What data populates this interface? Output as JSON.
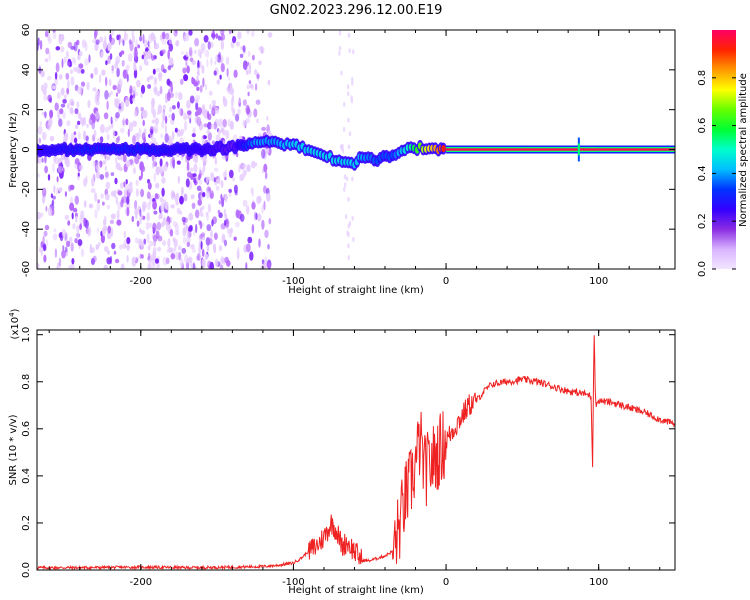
{
  "title": "GN02.2023.296.12.00.E19",
  "colorbar": {
    "label": "Normalized spectral amplitude",
    "ticks": [
      "0.0",
      "0.2",
      "0.4",
      "0.6",
      "0.8"
    ],
    "tick_values": [
      0.0,
      0.2,
      0.4,
      0.6,
      0.8
    ],
    "range": [
      0,
      1
    ],
    "colormap": [
      "#f2e6ff",
      "#d9b3ff",
      "#8a2be2",
      "#3300ff",
      "#0033ff",
      "#00bfff",
      "#00ffcc",
      "#00ff33",
      "#66ff00",
      "#ffff00",
      "#ff9900",
      "#ff2200",
      "#ff0066"
    ]
  },
  "chart_data": [
    {
      "type": "heatmap",
      "title": "GN02.2023.296.12.00.E19",
      "xlabel": "Height of straight line (km)",
      "ylabel": "Frequency (Hz)",
      "xlim": [
        -268,
        150
      ],
      "ylim": [
        -60,
        60
      ],
      "xticks": [
        -200,
        -100,
        0,
        100
      ],
      "yticks": [
        -60,
        -40,
        -20,
        0,
        20,
        40,
        60
      ],
      "xtick_labels": [
        "-200",
        "-100",
        "0",
        "100"
      ],
      "ytick_labels": [
        "-60",
        "-40",
        "-20",
        "0",
        "20",
        "40",
        "60"
      ],
      "signal_track": [
        {
          "x": -268,
          "freq": 0,
          "amp": 0.25
        },
        {
          "x": -240,
          "freq": 0,
          "amp": 0.3
        },
        {
          "x": -200,
          "freq": 0,
          "amp": 0.3
        },
        {
          "x": -160,
          "freq": 0,
          "amp": 0.25
        },
        {
          "x": -140,
          "freq": 1,
          "amp": 0.2
        },
        {
          "x": -125,
          "freq": 4,
          "amp": 0.4
        },
        {
          "x": -110,
          "freq": 3,
          "amp": 0.4
        },
        {
          "x": -100,
          "freq": 2,
          "amp": 0.45
        },
        {
          "x": -90,
          "freq": 0,
          "amp": 0.45
        },
        {
          "x": -80,
          "freq": -3,
          "amp": 0.45
        },
        {
          "x": -70,
          "freq": -6,
          "amp": 0.45
        },
        {
          "x": -60,
          "freq": -8,
          "amp": 0.45
        },
        {
          "x": -55,
          "freq": -3,
          "amp": 0.4
        },
        {
          "x": -45,
          "freq": -5,
          "amp": 0.35
        },
        {
          "x": -35,
          "freq": -3,
          "amp": 0.35
        },
        {
          "x": -25,
          "freq": 0,
          "amp": 0.5
        },
        {
          "x": -15,
          "freq": 1,
          "amp": 0.7
        },
        {
          "x": -5,
          "freq": 0,
          "amp": 0.85
        },
        {
          "x": 0,
          "freq": 0,
          "amp": 0.95
        },
        {
          "x": 50,
          "freq": 0,
          "amp": 1.0
        },
        {
          "x": 100,
          "freq": 0,
          "amp": 1.0
        },
        {
          "x": 150,
          "freq": 0,
          "amp": 1.0
        }
      ],
      "noise_extent_km": [
        -268,
        -115
      ],
      "spike_x": 87
    },
    {
      "type": "line",
      "xlabel": "Height of straight line (km)",
      "ylabel": "SNR (10 * v/v)",
      "y_multiplier": "(x10",
      "y_multiplier_exp": "4",
      "y_multiplier_close": ")",
      "xlim": [
        -268,
        150
      ],
      "ylim": [
        0,
        1.02
      ],
      "xticks": [
        -200,
        -100,
        0,
        100
      ],
      "yticks": [
        0.0,
        0.2,
        0.4,
        0.6,
        0.8,
        1.0
      ],
      "xtick_labels": [
        "-200",
        "-100",
        "0",
        "100"
      ],
      "ytick_labels": [
        "0.0",
        "0.2",
        "0.4",
        "0.6",
        "0.8",
        "1.0"
      ],
      "series": [
        {
          "color": "#ee2222",
          "x": [
            -268,
            -240,
            -200,
            -170,
            -140,
            -120,
            -110,
            -100,
            -95,
            -90,
            -85,
            -80,
            -75,
            -72,
            -68,
            -65,
            -60,
            -55,
            -50,
            -45,
            -40,
            -35,
            -30,
            -27,
            -24,
            -20,
            -17,
            -14,
            -10,
            -5,
            0,
            5,
            10,
            15,
            20,
            25,
            30,
            40,
            50,
            60,
            70,
            80,
            90,
            95,
            96,
            97,
            98,
            100,
            110,
            120,
            130,
            140,
            150
          ],
          "y": [
            0.01,
            0.01,
            0.012,
            0.01,
            0.012,
            0.015,
            0.02,
            0.03,
            0.05,
            0.08,
            0.1,
            0.14,
            0.2,
            0.17,
            0.1,
            0.12,
            0.08,
            0.04,
            0.04,
            0.05,
            0.06,
            0.08,
            0.2,
            0.3,
            0.35,
            0.45,
            0.55,
            0.42,
            0.45,
            0.5,
            0.55,
            0.6,
            0.65,
            0.7,
            0.72,
            0.76,
            0.79,
            0.8,
            0.81,
            0.8,
            0.78,
            0.76,
            0.75,
            0.74,
            0.45,
            1.02,
            0.7,
            0.72,
            0.71,
            0.69,
            0.67,
            0.64,
            0.62
          ]
        }
      ]
    }
  ]
}
